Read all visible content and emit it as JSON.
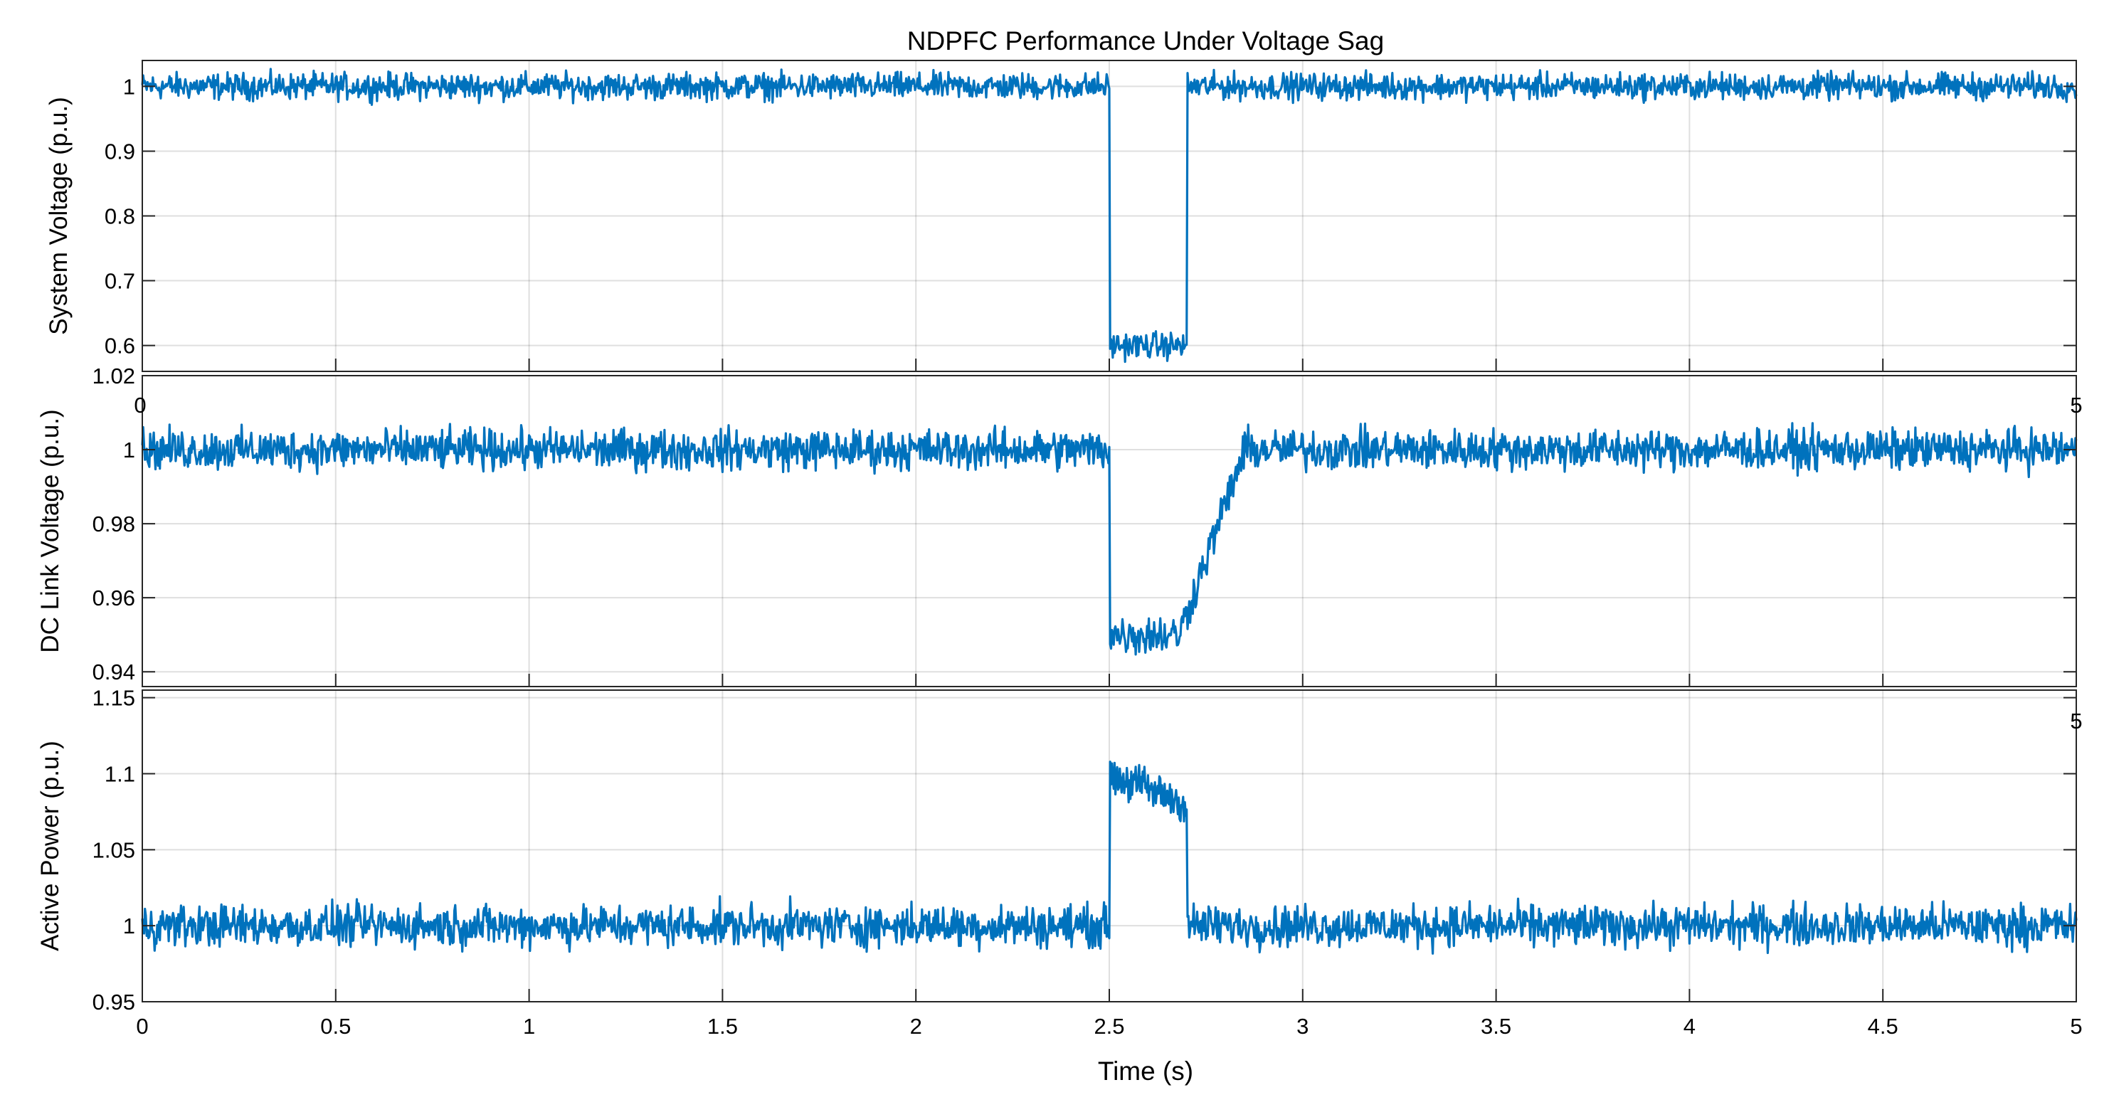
{
  "chart_data": [
    {
      "type": "line",
      "title": "NDPFC Performance Under Voltage Sag",
      "ylabel": "System Voltage (p.u.)",
      "xlabel": "",
      "xlim": [
        0,
        5
      ],
      "ylim": [
        0.56,
        1.04
      ],
      "yticks": [
        0.6,
        0.7,
        0.8,
        0.9,
        1
      ],
      "ytick_labels": [
        "0.6",
        "0.7",
        "0.8",
        "0.9",
        "1"
      ],
      "xtick_labels_partial": [
        "0",
        "5"
      ],
      "grid": true,
      "series_color": "#0072BD",
      "profile": [
        [
          0,
          1.0
        ],
        [
          2.5,
          1.0
        ],
        [
          2.5,
          0.6
        ],
        [
          2.7,
          0.6
        ],
        [
          2.7,
          1.0
        ],
        [
          5,
          1.0
        ]
      ],
      "noise_amplitude": 0.03
    },
    {
      "type": "line",
      "title": "",
      "ylabel": "DC Link Voltage (p.u.)",
      "xlabel": "",
      "xlim": [
        0,
        5
      ],
      "ylim": [
        0.936,
        1.02
      ],
      "yticks": [
        0.94,
        0.96,
        0.98,
        1,
        1.02
      ],
      "ytick_labels": [
        "0.94",
        "0.96",
        "0.98",
        "1",
        "1.02"
      ],
      "grid": true,
      "series_color": "#0072BD",
      "profile": [
        [
          0,
          1.0
        ],
        [
          2.5,
          1.0
        ],
        [
          2.5,
          0.95
        ],
        [
          2.68,
          0.95
        ],
        [
          2.85,
          1.0
        ],
        [
          5,
          1.0
        ]
      ],
      "noise_amplitude": 0.008
    },
    {
      "type": "line",
      "title": "",
      "ylabel": "Active Power (p.u.)",
      "xlabel": "Time (s)",
      "xlim": [
        0,
        5
      ],
      "ylim": [
        0.95,
        1.155
      ],
      "yticks": [
        0.95,
        1,
        1.05,
        1.1,
        1.15
      ],
      "ytick_labels": [
        "0.95",
        "1",
        "1.05",
        "1.1",
        "1.15"
      ],
      "xticks": [
        0,
        0.5,
        1,
        1.5,
        2,
        2.5,
        3,
        3.5,
        4,
        4.5,
        5
      ],
      "xtick_labels": [
        "0",
        "0.5",
        "1",
        "1.5",
        "2",
        "2.5",
        "3",
        "3.5",
        "4",
        "4.5",
        "5"
      ],
      "grid": true,
      "series_color": "#0072BD",
      "profile": [
        [
          0,
          1.0
        ],
        [
          2.5,
          1.0
        ],
        [
          2.5,
          1.1
        ],
        [
          2.7,
          1.08
        ],
        [
          2.7,
          1.0
        ],
        [
          5,
          1.0
        ]
      ],
      "noise_amplitude": 0.02
    }
  ],
  "stray_labels": [
    "0",
    "5",
    "5"
  ]
}
